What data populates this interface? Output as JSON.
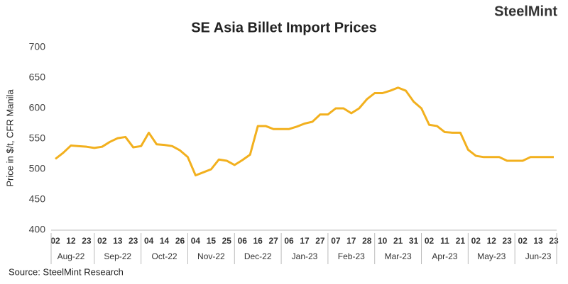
{
  "chart_data": {
    "type": "line",
    "title": "SE Asia Billet Import Prices",
    "brand": "SteelMint",
    "y_label": "Price in $/t, CFR Manila",
    "source": "Source:  SteelMint Research",
    "categories": [
      "02",
      null,
      "12",
      null,
      "23",
      null,
      "02",
      null,
      "13",
      null,
      "23",
      null,
      "04",
      null,
      "14",
      null,
      "26",
      null,
      "04",
      null,
      "15",
      null,
      "25",
      null,
      "06",
      null,
      "16",
      null,
      "27",
      null,
      "06",
      null,
      "17",
      null,
      "27",
      null,
      "07",
      null,
      "17",
      null,
      "28",
      null,
      "10",
      null,
      "21",
      null,
      "31",
      null,
      "02",
      null,
      "11",
      null,
      "21",
      null,
      "02",
      null,
      "12",
      null,
      "23",
      null,
      "02",
      null,
      "13",
      null,
      "23"
    ],
    "months": [
      "Aug-22",
      "Sep-22",
      "Oct-22",
      "Nov-22",
      "Dec-22",
      "Jan-23",
      "Feb-23",
      "Mar-23",
      "Apr-23",
      "May-23",
      "Jun-23"
    ],
    "series": [
      {
        "name": "Price",
        "color": "#f2b01e",
        "values": [
          517,
          527,
          539,
          538,
          537,
          535,
          537,
          545,
          551,
          553,
          536,
          538,
          560,
          541,
          540,
          538,
          531,
          520,
          490,
          495,
          500,
          516,
          514,
          507,
          515,
          524,
          571,
          571,
          566,
          566,
          566,
          570,
          575,
          578,
          590,
          590,
          600,
          600,
          592,
          600,
          615,
          625,
          625,
          629,
          634,
          629,
          611,
          600,
          573,
          571,
          561,
          560,
          560,
          532,
          522,
          520,
          520,
          520,
          514,
          514,
          514,
          520,
          520,
          520,
          520
        ]
      }
    ],
    "ylim": [
      400,
      700
    ],
    "yticks": [
      400,
      450,
      500,
      550,
      600,
      650,
      700
    ],
    "grid": false
  }
}
